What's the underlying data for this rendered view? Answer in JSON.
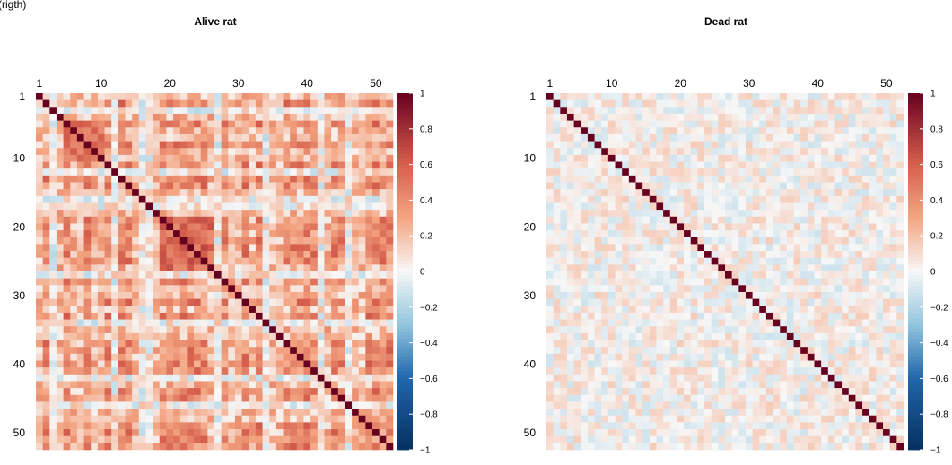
{
  "page": {
    "top_left_fragment": "(rigth)"
  },
  "chart_data": [
    {
      "type": "heatmap",
      "title": "Alive rat",
      "n": 52,
      "x_ticks": [
        1,
        10,
        20,
        30,
        40,
        50
      ],
      "y_ticks": [
        1,
        10,
        20,
        30,
        40,
        50
      ],
      "colorbar": {
        "ticks": [
          "1",
          "0.8",
          "0.6",
          "0.4",
          "0.2",
          "0",
          "−0.2",
          "−0.4",
          "−0.6",
          "−0.8",
          "−1"
        ],
        "range": [
          -1,
          1
        ]
      },
      "diagonal_value": 1,
      "pattern": {
        "seed": 11,
        "base_mean": 0.22,
        "noise": 0.2,
        "high_block_ranges": [
          [
            5,
            10
          ],
          [
            19,
            26
          ]
        ],
        "high_block_value": 0.55,
        "strong_cols": [
          2,
          5,
          8,
          11,
          13,
          14,
          19,
          20,
          21,
          22,
          23,
          24,
          25,
          28,
          31,
          33,
          37,
          38,
          39,
          40,
          41,
          44,
          45,
          49,
          50,
          51,
          52
        ],
        "weak_cols": [
          3,
          12,
          16,
          17,
          27,
          34,
          42,
          46
        ]
      }
    },
    {
      "type": "heatmap",
      "title": "Dead rat",
      "n": 52,
      "x_ticks": [
        1,
        10,
        20,
        30,
        40,
        50
      ],
      "y_ticks": [
        1,
        10,
        20,
        30,
        40,
        50
      ],
      "colorbar": {
        "ticks": [
          "1",
          "0.8",
          "0.6",
          "0.4",
          "0.2",
          "0",
          "−0.2",
          "−0.4",
          "−0.6",
          "−0.8",
          "−1"
        ],
        "range": [
          -1,
          1
        ]
      },
      "diagonal_value": 1,
      "pattern": {
        "seed": 29,
        "base_mean": 0.02,
        "noise": 0.14,
        "high_block_ranges": [],
        "high_block_value": 0,
        "strong_cols": [],
        "weak_cols": []
      }
    }
  ],
  "colors": {
    "neg_max": "#053061",
    "neg_mid": "#2166ac",
    "neg_light": "#92c5de",
    "zero": "#f7f7f7",
    "pos_light": "#f4a582",
    "pos_mid": "#d6604d",
    "pos_max": "#67001f"
  }
}
